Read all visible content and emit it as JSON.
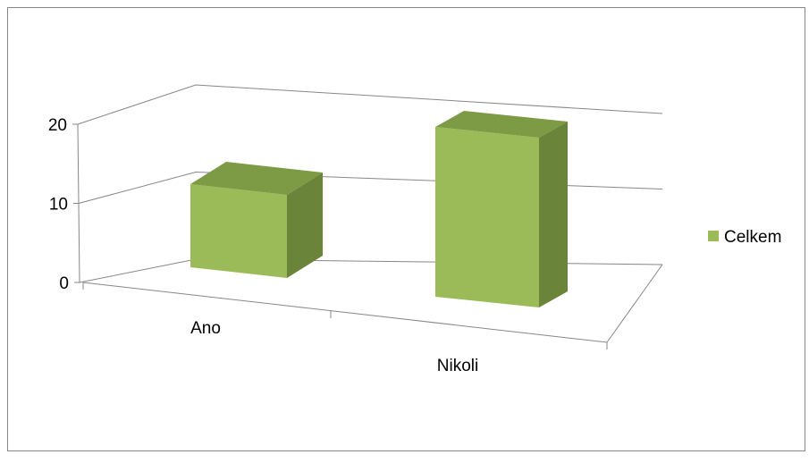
{
  "chart_data": {
    "type": "bar",
    "title": "",
    "xlabel": "",
    "ylabel": "",
    "categories": [
      "Ano",
      "Nikoli"
    ],
    "series": [
      {
        "name": "Celkem",
        "values": [
          10,
          19
        ],
        "color": "#9BBB59"
      }
    ],
    "y_ticks": [
      "0",
      "10",
      "20"
    ],
    "ylim": [
      0,
      20
    ],
    "grid": true,
    "legend_position": "right",
    "style": "3d-perspective"
  }
}
